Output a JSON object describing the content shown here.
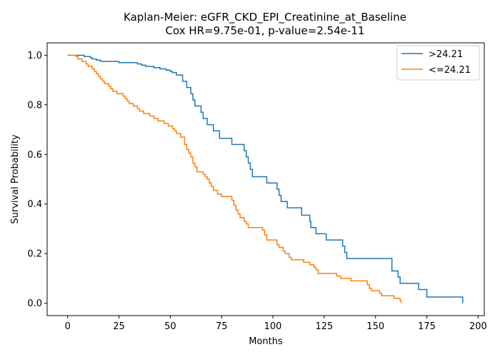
{
  "chart_data": {
    "type": "line",
    "title": "Kaplan-Meier: eGFR_CKD_EPI_Creatinine_at_Baseline",
    "subtitle": "Cox HR=9.75e-01, p-value=2.54e-11",
    "xlabel": "Months",
    "ylabel": "Survival Probability",
    "xlim": [
      -10,
      203
    ],
    "ylim": [
      -0.05,
      1.05
    ],
    "x_ticks": [
      0,
      25,
      50,
      75,
      100,
      125,
      150,
      175,
      200
    ],
    "y_ticks": [
      0.0,
      0.2,
      0.4,
      0.6,
      0.8,
      1.0
    ],
    "grid": false,
    "legend_position": "top-right",
    "series": [
      {
        "name": ">24.21",
        "color": "#1f77b4",
        "step": "post",
        "points": [
          [
            0,
            1.0
          ],
          [
            6,
            1.0
          ],
          [
            8,
            0.995
          ],
          [
            11,
            0.99
          ],
          [
            12,
            0.985
          ],
          [
            14,
            0.98
          ],
          [
            16,
            0.975
          ],
          [
            25,
            0.97
          ],
          [
            34,
            0.965
          ],
          [
            36,
            0.96
          ],
          [
            38,
            0.955
          ],
          [
            42,
            0.95
          ],
          [
            45,
            0.945
          ],
          [
            48,
            0.94
          ],
          [
            50,
            0.935
          ],
          [
            51,
            0.93
          ],
          [
            53,
            0.92
          ],
          [
            56,
            0.895
          ],
          [
            58,
            0.87
          ],
          [
            60,
            0.845
          ],
          [
            61,
            0.82
          ],
          [
            62,
            0.795
          ],
          [
            65,
            0.77
          ],
          [
            66,
            0.745
          ],
          [
            68,
            0.72
          ],
          [
            71,
            0.695
          ],
          [
            74,
            0.665
          ],
          [
            80,
            0.64
          ],
          [
            86,
            0.615
          ],
          [
            87,
            0.59
          ],
          [
            88,
            0.565
          ],
          [
            89,
            0.54
          ],
          [
            90,
            0.51
          ],
          [
            97,
            0.485
          ],
          [
            102,
            0.46
          ],
          [
            103,
            0.435
          ],
          [
            104,
            0.41
          ],
          [
            107,
            0.385
          ],
          [
            114,
            0.355
          ],
          [
            118,
            0.33
          ],
          [
            118.5,
            0.305
          ],
          [
            121,
            0.28
          ],
          [
            126,
            0.255
          ],
          [
            134,
            0.23
          ],
          [
            135,
            0.205
          ],
          [
            136,
            0.18
          ],
          [
            158,
            0.13
          ],
          [
            161,
            0.105
          ],
          [
            162,
            0.08
          ],
          [
            171,
            0.055
          ],
          [
            175,
            0.025
          ],
          [
            192,
            0.025
          ],
          [
            192.5,
            0.0
          ]
        ]
      },
      {
        "name": "<=24.21",
        "color": "#ff7f0e",
        "step": "post",
        "points": [
          [
            0,
            1.0
          ],
          [
            4,
            0.995
          ],
          [
            5,
            0.985
          ],
          [
            7,
            0.975
          ],
          [
            9,
            0.965
          ],
          [
            10,
            0.955
          ],
          [
            12,
            0.945
          ],
          [
            13,
            0.935
          ],
          [
            14,
            0.925
          ],
          [
            15,
            0.915
          ],
          [
            16,
            0.905
          ],
          [
            17,
            0.895
          ],
          [
            18,
            0.885
          ],
          [
            20,
            0.875
          ],
          [
            21,
            0.865
          ],
          [
            22,
            0.855
          ],
          [
            24,
            0.845
          ],
          [
            27,
            0.835
          ],
          [
            28,
            0.825
          ],
          [
            29,
            0.815
          ],
          [
            30,
            0.805
          ],
          [
            32,
            0.795
          ],
          [
            34,
            0.785
          ],
          [
            35,
            0.775
          ],
          [
            37,
            0.765
          ],
          [
            40,
            0.755
          ],
          [
            42,
            0.745
          ],
          [
            44,
            0.735
          ],
          [
            47,
            0.725
          ],
          [
            49,
            0.715
          ],
          [
            51,
            0.705
          ],
          [
            52,
            0.695
          ],
          [
            53,
            0.685
          ],
          [
            55,
            0.67
          ],
          [
            57,
            0.64
          ],
          [
            58,
            0.62
          ],
          [
            59,
            0.605
          ],
          [
            60,
            0.59
          ],
          [
            61,
            0.565
          ],
          [
            62,
            0.55
          ],
          [
            63,
            0.53
          ],
          [
            66,
            0.52
          ],
          [
            67,
            0.51
          ],
          [
            68,
            0.5
          ],
          [
            69,
            0.485
          ],
          [
            70,
            0.47
          ],
          [
            71,
            0.455
          ],
          [
            73,
            0.44
          ],
          [
            75,
            0.43
          ],
          [
            80,
            0.415
          ],
          [
            81,
            0.395
          ],
          [
            82,
            0.375
          ],
          [
            83,
            0.36
          ],
          [
            84,
            0.345
          ],
          [
            86,
            0.33
          ],
          [
            87,
            0.32
          ],
          [
            88,
            0.305
          ],
          [
            95,
            0.295
          ],
          [
            96,
            0.275
          ],
          [
            97,
            0.255
          ],
          [
            102,
            0.235
          ],
          [
            103,
            0.225
          ],
          [
            105,
            0.21
          ],
          [
            106,
            0.2
          ],
          [
            108,
            0.185
          ],
          [
            109,
            0.175
          ],
          [
            115,
            0.165
          ],
          [
            118,
            0.155
          ],
          [
            120,
            0.145
          ],
          [
            121,
            0.135
          ],
          [
            122,
            0.12
          ],
          [
            131,
            0.11
          ],
          [
            133,
            0.1
          ],
          [
            138,
            0.09
          ],
          [
            146,
            0.075
          ],
          [
            147,
            0.06
          ],
          [
            148,
            0.05
          ],
          [
            152,
            0.04
          ],
          [
            153,
            0.03
          ],
          [
            159,
            0.02
          ],
          [
            162,
            0.01
          ],
          [
            162.5,
            0.0
          ]
        ]
      }
    ]
  }
}
